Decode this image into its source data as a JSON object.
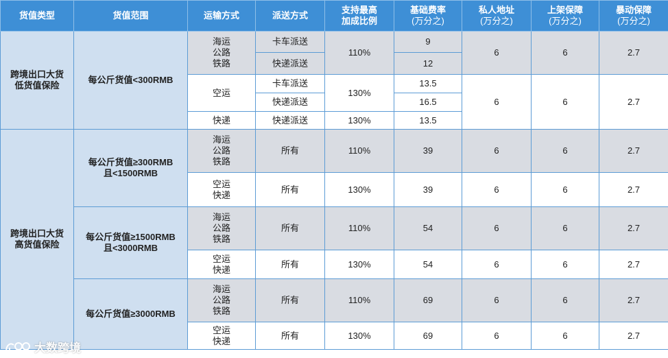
{
  "headers": {
    "type": "货值类型",
    "range": "货值范围",
    "transport": "运输方式",
    "delivery": "派送方式",
    "max_ratio_1": "支持最高",
    "max_ratio_2": "加成比例",
    "base_rate": "基础费率",
    "base_rate_unit": "(万分之)",
    "private_addr": "私人地址",
    "private_addr_unit": "(万分之)",
    "shelf": "上架保障",
    "shelf_unit": "(万分之)",
    "riot": "暴动保障",
    "riot_unit": "(万分之)"
  },
  "low": {
    "type_1": "跨境出口大货",
    "type_2": "低货值保险",
    "range": "每公斤货值<300RMB",
    "sea_land_rail": [
      "海运",
      "公路",
      "铁路"
    ],
    "truck": "卡车派送",
    "express_delivery": "快递派送",
    "ratio_110": "110%",
    "rate_truck": "9",
    "rate_express": "12",
    "private_1": "6",
    "shelf_1": "6",
    "riot_1": "2.7",
    "air": "空运",
    "air_truck": "卡车派送",
    "air_express": "快递派送",
    "ratio_130": "130%",
    "rate_air_truck": "13.5",
    "rate_air_express": "16.5",
    "private_2": "6",
    "shelf_2": "6",
    "riot_2": "2.7",
    "express": "快递",
    "express_delivery2": "快递派送",
    "ratio_130b": "130%",
    "rate_express2": "13.5"
  },
  "high": {
    "type_1": "跨境出口大货",
    "type_2": "高货值保险",
    "all": "所有",
    "bands": [
      {
        "range_1": "每公斤货值≥300RMB",
        "range_2": "且<1500RMB",
        "rows": [
          {
            "t": [
              "海运",
              "公路",
              "铁路"
            ],
            "d": "所有",
            "ratio": "110%",
            "rate": "39",
            "p": "6",
            "s": "6",
            "r": "2.7"
          },
          {
            "t": [
              "空运",
              "快递"
            ],
            "d": "所有",
            "ratio": "130%",
            "rate": "39",
            "p": "6",
            "s": "6",
            "r": "2.7"
          }
        ]
      },
      {
        "range_1": "每公斤货值≥1500RMB",
        "range_2": "且<3000RMB",
        "rows": [
          {
            "t": [
              "海运",
              "公路",
              "铁路"
            ],
            "d": "所有",
            "ratio": "110%",
            "rate": "54",
            "p": "6",
            "s": "6",
            "r": "2.7"
          },
          {
            "t": [
              "空运",
              "快递"
            ],
            "d": "所有",
            "ratio": "130%",
            "rate": "54",
            "p": "6",
            "s": "6",
            "r": "2.7"
          }
        ]
      },
      {
        "range_1": "每公斤货值≥3000RMB",
        "range_2": "",
        "rows": [
          {
            "t": [
              "海运",
              "公路",
              "铁路"
            ],
            "d": "所有",
            "ratio": "110%",
            "rate": "69",
            "p": "6",
            "s": "6",
            "r": "2.7"
          },
          {
            "t": [
              "空运",
              "快递"
            ],
            "d": "所有",
            "ratio": "130%",
            "rate": "69",
            "p": "6",
            "s": "6",
            "r": "2.7"
          }
        ]
      }
    ]
  },
  "watermark": {
    "text": "大数跨境",
    "icon": "brand-logo-icon"
  },
  "colors": {
    "header_bg": "#3e8fd6",
    "category_bg": "#cfdff0",
    "gray_cell": "#d9dce2",
    "border": "#5b9bd5"
  }
}
